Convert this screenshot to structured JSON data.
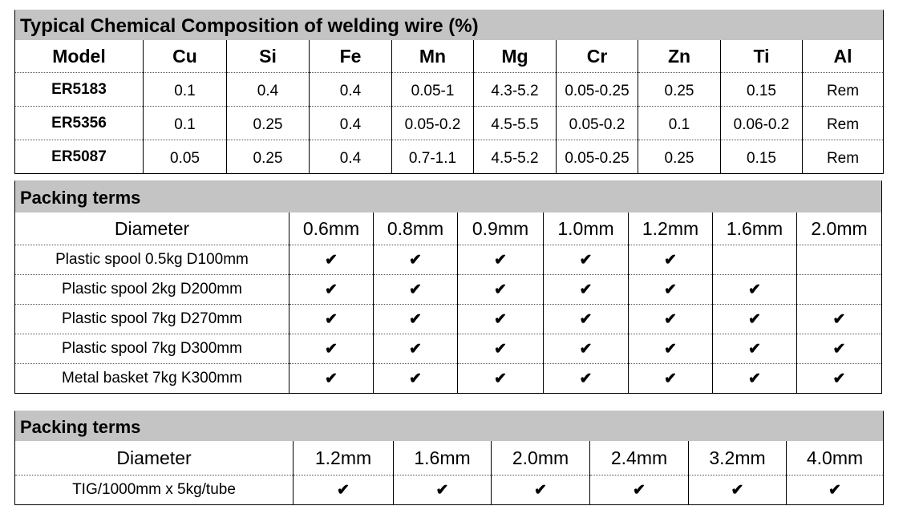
{
  "tables": [
    {
      "title": "Typical Chemical Composition of welding wire (%)",
      "columns": [
        "Model",
        "Cu",
        "Si",
        "Fe",
        "Mn",
        "Mg",
        "Cr",
        "Zn",
        "Ti",
        "Al"
      ],
      "rows": [
        [
          "ER5183",
          "0.1",
          "0.4",
          "0.4",
          "0.05-1",
          "4.3-5.2",
          "0.05-0.25",
          "0.25",
          "0.15",
          "Rem"
        ],
        [
          "ER5356",
          "0.1",
          "0.25",
          "0.4",
          "0.05-0.2",
          "4.5-5.5",
          "0.05-0.2",
          "0.1",
          "0.06-0.2",
          "Rem"
        ],
        [
          "ER5087",
          "0.05",
          "0.25",
          "0.4",
          "0.7-1.1",
          "4.5-5.2",
          "0.05-0.25",
          "0.25",
          "0.15",
          "Rem"
        ]
      ]
    },
    {
      "title": "Packing terms",
      "columns": [
        "Diameter",
        "0.6mm",
        "0.8mm",
        "0.9mm",
        "1.0mm",
        "1.2mm",
        "1.6mm",
        "2.0mm"
      ],
      "rows": [
        [
          "Plastic spool 0.5kg D100mm",
          "✔",
          "✔",
          "✔",
          "✔",
          "✔",
          null,
          null
        ],
        [
          "Plastic spool 2kg D200mm",
          "✔",
          "✔",
          "✔",
          "✔",
          "✔",
          "✔",
          null
        ],
        [
          "Plastic spool 7kg D270mm",
          "✔",
          "✔",
          "✔",
          "✔",
          "✔",
          "✔",
          "✔"
        ],
        [
          "Plastic spool 7kg D300mm",
          "✔",
          "✔",
          "✔",
          "✔",
          "✔",
          "✔",
          "✔"
        ],
        [
          "Metal basket 7kg K300mm",
          "✔",
          "✔",
          "✔",
          "✔",
          "✔",
          "✔",
          "✔"
        ]
      ]
    },
    {
      "title": "Packing terms",
      "columns": [
        "Diameter",
        "1.2mm",
        "1.6mm",
        "2.0mm",
        "2.4mm",
        "3.2mm",
        "4.0mm"
      ],
      "rows": [
        [
          "TIG/1000mm x 5kg/tube",
          "✔",
          "✔",
          "✔",
          "✔",
          "✔",
          "✔"
        ]
      ]
    }
  ]
}
